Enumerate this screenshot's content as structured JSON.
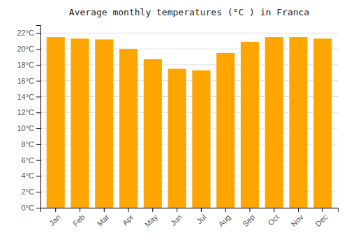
{
  "chart_data": {
    "type": "bar",
    "title": "Average monthly temperatures (°C ) in Franca",
    "categories": [
      "Jan",
      "Feb",
      "Mar",
      "Apr",
      "May",
      "Jun",
      "Jul",
      "Aug",
      "Sep",
      "Oct",
      "Nov",
      "Dec"
    ],
    "values": [
      21.5,
      21.3,
      21.2,
      20.0,
      18.7,
      17.5,
      17.3,
      19.5,
      20.9,
      21.5,
      21.5,
      21.3
    ],
    "color": "#FFA500",
    "ylim": [
      0,
      23
    ],
    "yticks": [
      {
        "value": 0,
        "label": "0°C"
      },
      {
        "value": 2,
        "label": "2°C"
      },
      {
        "value": 4,
        "label": "4°C"
      },
      {
        "value": 6,
        "label": "6°C"
      },
      {
        "value": 8,
        "label": "8°C"
      },
      {
        "value": 10,
        "label": "10°C"
      },
      {
        "value": 12,
        "label": "12°C"
      },
      {
        "value": 14,
        "label": "14°C"
      },
      {
        "value": 16,
        "label": "16°C"
      },
      {
        "value": 18,
        "label": "18°C"
      },
      {
        "value": 20,
        "label": "20°C"
      },
      {
        "value": 22,
        "label": "22°C"
      }
    ],
    "grid": true
  }
}
